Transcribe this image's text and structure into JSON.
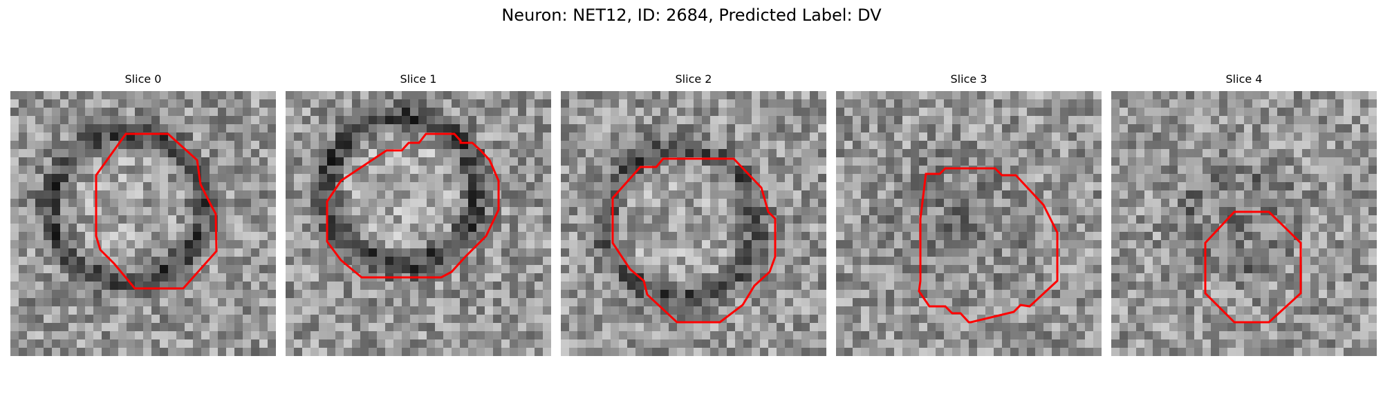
{
  "figure": {
    "title": "Neuron: NET12, ID: 2684, Predicted Label: DV",
    "roi_color": "#ff0000"
  },
  "slices": [
    {
      "title": "Slice 0"
    },
    {
      "title": "Slice 1"
    },
    {
      "title": "Slice 2"
    },
    {
      "title": "Slice 3"
    },
    {
      "title": "Slice 4"
    }
  ]
}
